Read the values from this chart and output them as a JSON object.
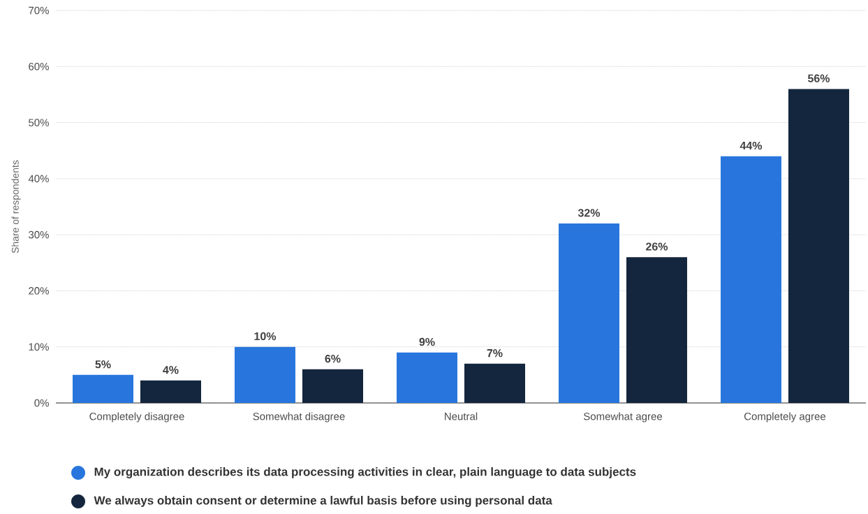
{
  "chart_data": {
    "type": "bar",
    "ylabel": "Share of respondents",
    "categories": [
      "Completely disagree",
      "Somewhat disagree",
      "Neutral",
      "Somewhat agree",
      "Completely agree"
    ],
    "series": [
      {
        "name": "My organization describes its data processing activities in clear, plain language to data subjects",
        "color": "#2876dd",
        "values": [
          5,
          10,
          9,
          32,
          44
        ],
        "value_labels": [
          "5%",
          "10%",
          "9%",
          "32%",
          "44%"
        ]
      },
      {
        "name": "We always obtain consent or determine a lawful basis before using personal data",
        "color": "#14263d",
        "values": [
          4,
          6,
          7,
          26,
          56
        ],
        "value_labels": [
          "4%",
          "6%",
          "7%",
          "26%",
          "56%"
        ]
      }
    ],
    "ylim": [
      0,
      70
    ],
    "yticks": [
      {
        "value": 0,
        "label": "0%"
      },
      {
        "value": 10,
        "label": "10%"
      },
      {
        "value": 20,
        "label": "20%"
      },
      {
        "value": 30,
        "label": "30%"
      },
      {
        "value": 40,
        "label": "40%"
      },
      {
        "value": 50,
        "label": "50%"
      },
      {
        "value": 60,
        "label": "60%"
      },
      {
        "value": 70,
        "label": "70%"
      }
    ],
    "grid": "y",
    "legend": "bottom"
  }
}
